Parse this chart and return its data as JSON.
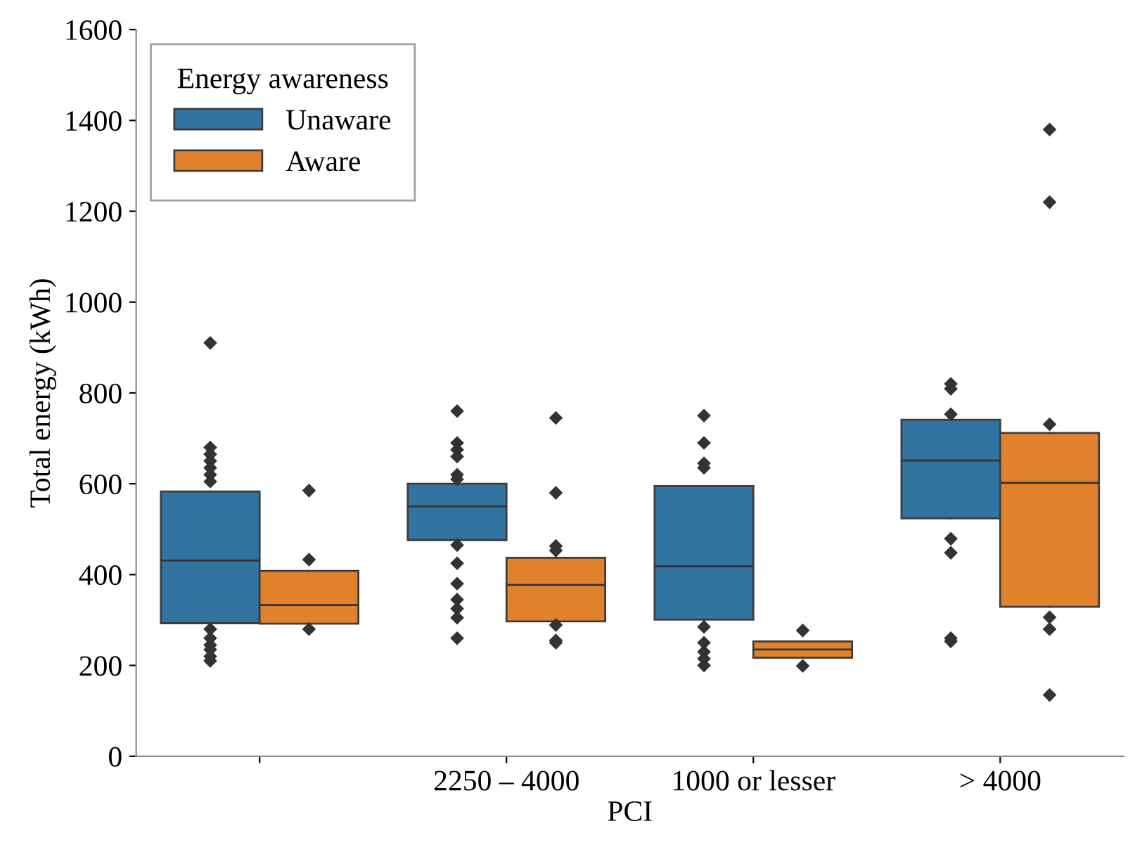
{
  "chart_data": {
    "type": "box",
    "xlabel": "PCI",
    "ylabel": "Total energy (kWh)",
    "legend_title": "Energy awareness",
    "legend": "top left",
    "grid": false,
    "marker": "diamond",
    "categories": [
      null,
      "2250 – 4000",
      "1000 or lesser",
      "> 4000"
    ],
    "ylim": [
      0,
      1600
    ],
    "yticks": [
      0,
      200,
      400,
      600,
      800,
      1000,
      1200,
      1400,
      1600
    ],
    "series": [
      {
        "name": "Unaware",
        "color": "#3274a1",
        "boxes": [
          {
            "low": 293,
            "q1": 293,
            "median": 431,
            "q3": 583,
            "high": 583,
            "outliers": [
              910,
              680,
              665,
              650,
              635,
              620,
              605,
              280,
              260,
              245,
              235,
              220,
              210
            ]
          },
          {
            "low": 476,
            "q1": 476,
            "median": 550,
            "q3": 600,
            "high": 600,
            "outliers": [
              760,
              690,
              675,
              660,
              620,
              610,
              465,
              425,
              380,
              345,
              325,
              305,
              260
            ]
          },
          {
            "low": 301,
            "q1": 301,
            "median": 418,
            "q3": 595,
            "high": 595,
            "outliers": [
              750,
              690,
              645,
              635,
              285,
              250,
              230,
              215,
              200
            ]
          },
          {
            "low": 524,
            "q1": 524,
            "median": 651,
            "q3": 741,
            "high": 741,
            "outliers": [
              820,
              809,
              753,
              479,
              448,
              260,
              253
            ]
          }
        ]
      },
      {
        "name": "Aware",
        "color": "#e1812c",
        "boxes": [
          {
            "low": 292,
            "q1": 292,
            "median": 333,
            "q3": 408,
            "high": 408,
            "outliers": [
              585,
              433,
              280
            ]
          },
          {
            "low": 297,
            "q1": 297,
            "median": 377,
            "q3": 437,
            "high": 437,
            "outliers": [
              745,
              580,
              463,
              453,
              289,
              255,
              250
            ]
          },
          {
            "low": 217,
            "q1": 217,
            "median": 235,
            "q3": 253,
            "high": 253,
            "outliers": [
              277,
              199
            ]
          },
          {
            "low": 329,
            "q1": 329,
            "median": 602,
            "q3": 712,
            "high": 712,
            "outliers": [
              1380,
              1220,
              731,
              306,
              280,
              135
            ]
          }
        ]
      }
    ]
  }
}
